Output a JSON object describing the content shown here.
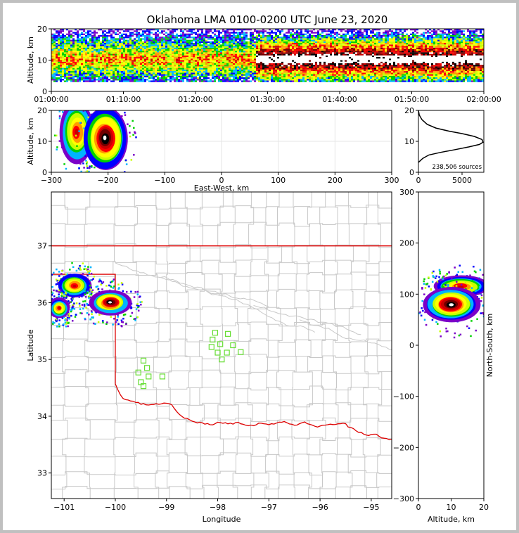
{
  "title": "Oklahoma LMA 0100-0200 UTC June 23, 2020",
  "colors": {
    "frame": "#000000",
    "state_border": "#dd0000",
    "county": "#c8c8c8",
    "station": "#66dd33",
    "grid": "#e6e6e6"
  },
  "chart_data": [
    {
      "type": "heatmap",
      "name": "altitude-time",
      "ylabel": "Altitude, km",
      "x_ticks": [
        "01:00:00",
        "01:10:00",
        "01:20:00",
        "01:30:00",
        "01:40:00",
        "01:50:00",
        "02:00:00"
      ],
      "xlim": [
        "01:00:00",
        "02:00:00"
      ],
      "ylim": [
        0,
        20
      ],
      "y_ticks": [
        0,
        10,
        20
      ],
      "band": {
        "altitude_min_km": 3,
        "altitude_max_km": 20,
        "core_altitude_km": 10,
        "dense_core_from": "01:28:00"
      }
    },
    {
      "type": "heatmap",
      "name": "altitude-east-west",
      "xlabel": "East-West, km",
      "ylabel": "Altitude, km",
      "xlim": [
        -300,
        300
      ],
      "ylim": [
        0,
        20
      ],
      "x_ticks": [
        -300,
        -200,
        -100,
        0,
        100,
        200,
        300
      ],
      "y_ticks": [
        0,
        10,
        20
      ],
      "cells": [
        {
          "x": -255,
          "y": 13,
          "rx": 20,
          "ry": 6,
          "peak": "red"
        },
        {
          "x": -205,
          "y": 11,
          "rx": 26,
          "ry": 6,
          "peak": "white"
        }
      ]
    },
    {
      "type": "line",
      "name": "altitude-histogram",
      "annotation": "238,506 sources",
      "xlim": [
        0,
        7500
      ],
      "ylim": [
        0,
        20
      ],
      "x_ticks": [
        0,
        5000
      ],
      "y_ticks": [
        0,
        10,
        20
      ],
      "points": [
        [
          0,
          3.2
        ],
        [
          500,
          4.5
        ],
        [
          1200,
          5.6
        ],
        [
          2500,
          6.4
        ],
        [
          4000,
          7.2
        ],
        [
          5800,
          8.2
        ],
        [
          7000,
          9.0
        ],
        [
          7400,
          9.7
        ],
        [
          7300,
          10.6
        ],
        [
          6400,
          11.6
        ],
        [
          5000,
          12.5
        ],
        [
          3500,
          13.3
        ],
        [
          2000,
          14.3
        ],
        [
          1000,
          15.5
        ],
        [
          400,
          17.0
        ],
        [
          100,
          18.5
        ],
        [
          0,
          20
        ]
      ]
    },
    {
      "type": "heatmap",
      "name": "plan-view",
      "xlabel": "Longitude",
      "ylabel": "Latitude",
      "xlim": [
        -101.25,
        -94.6
      ],
      "ylim": [
        32.55,
        37.95
      ],
      "x_ticks": [
        -101,
        -100,
        -99,
        -98,
        -97,
        -96,
        -95
      ],
      "y_ticks": [
        33,
        34,
        35,
        36,
        37
      ],
      "cells": [
        {
          "lon": -100.8,
          "lat": 36.3,
          "rlon": 0.25,
          "rlat": 0.15,
          "peak": "red"
        },
        {
          "lon": -100.1,
          "lat": 36.0,
          "rlon": 0.3,
          "rlat": 0.15,
          "peak": "white"
        },
        {
          "lon": -101.1,
          "lat": 35.9,
          "rlon": 0.15,
          "rlat": 0.12,
          "peak": "red"
        }
      ],
      "stations": [
        [
          -98.05,
          35.47
        ],
        [
          -98.1,
          35.35
        ],
        [
          -97.8,
          35.45
        ],
        [
          -98.12,
          35.22
        ],
        [
          -97.95,
          35.27
        ],
        [
          -97.7,
          35.25
        ],
        [
          -98.0,
          35.12
        ],
        [
          -97.82,
          35.12
        ],
        [
          -97.55,
          35.13
        ],
        [
          -97.92,
          35.0
        ],
        [
          -99.45,
          34.98
        ],
        [
          -99.38,
          34.85
        ],
        [
          -99.55,
          34.77
        ],
        [
          -99.35,
          34.7
        ],
        [
          -99.08,
          34.7
        ],
        [
          -99.5,
          34.6
        ],
        [
          -99.45,
          34.53
        ]
      ]
    },
    {
      "type": "heatmap",
      "name": "altitude-north-south",
      "xlabel": "Altitude, km",
      "ylabel": "North-South, km",
      "xlim": [
        0,
        20
      ],
      "ylim": [
        -300,
        300
      ],
      "x_ticks": [
        0,
        10,
        20
      ],
      "y_ticks": [
        -300,
        -200,
        -100,
        0,
        100,
        200,
        300
      ],
      "cells": [
        {
          "x": 13,
          "y": 115,
          "rx": 6,
          "ry": 14,
          "peak": "red"
        },
        {
          "x": 10,
          "y": 80,
          "rx": 6,
          "ry": 22,
          "peak": "white"
        }
      ]
    }
  ]
}
